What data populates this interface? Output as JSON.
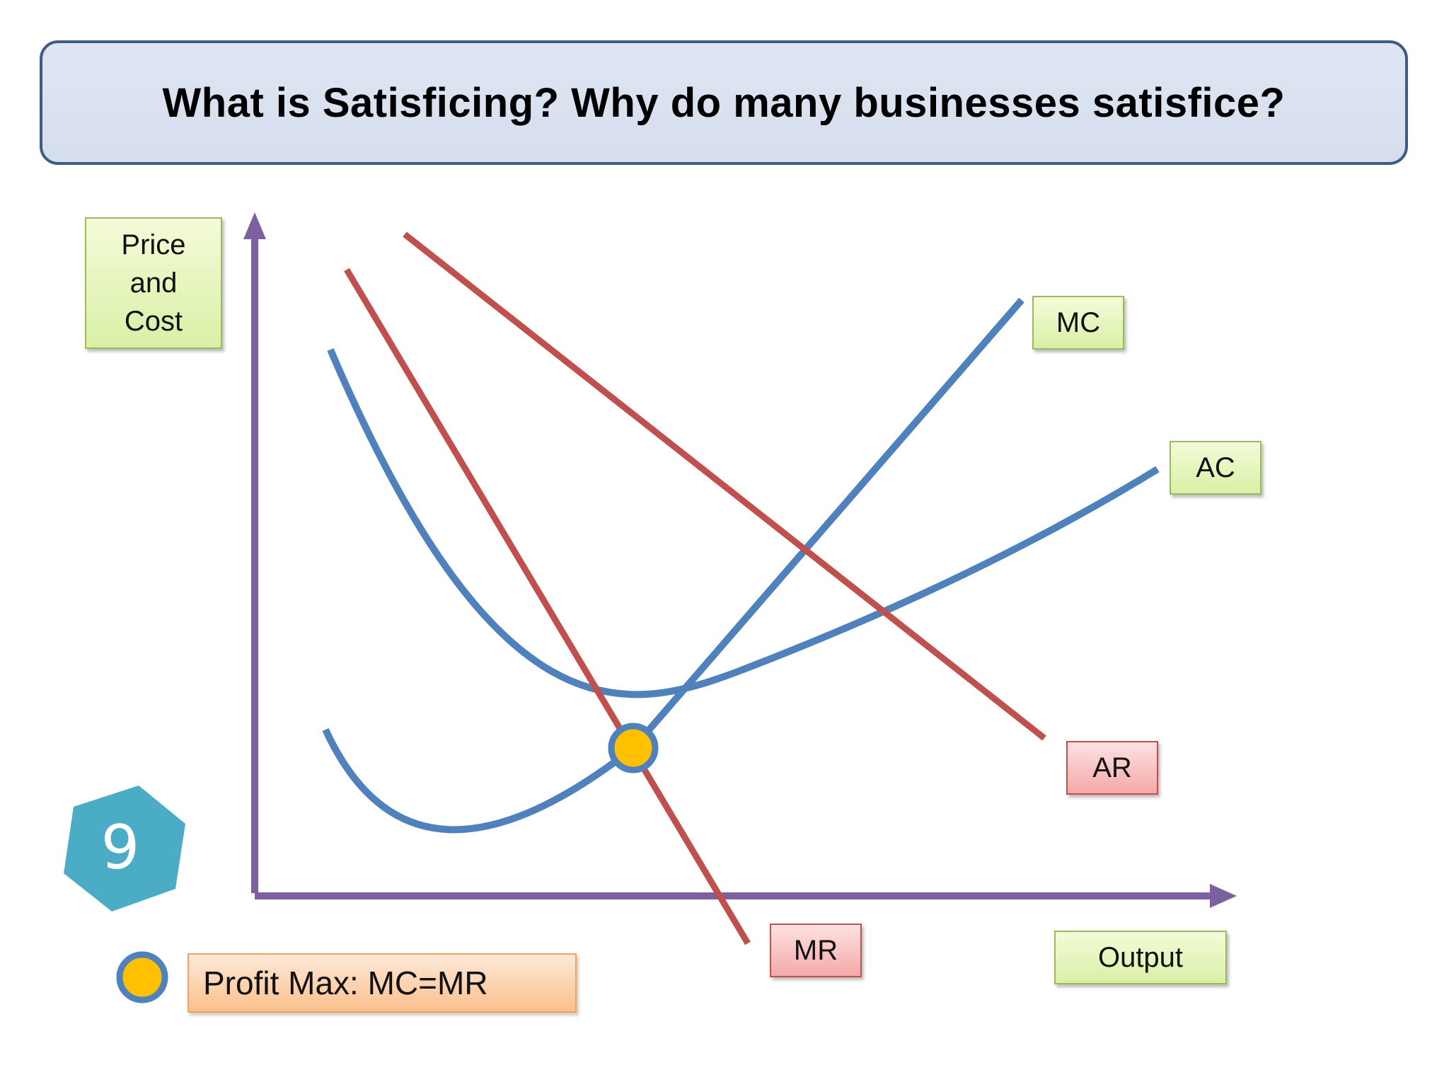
{
  "title": "What is Satisficing? Why do many businesses satisfice?",
  "labels": {
    "price_cost_line1": "Price",
    "price_cost_line2": "and",
    "price_cost_line3": "Cost",
    "mc": "MC",
    "ac": "AC",
    "ar": "AR",
    "mr": "MR",
    "output": "Output",
    "legend": "Profit Max: MC=MR",
    "slide_number": "9"
  },
  "colors": {
    "axis": "#7d60a0",
    "cost_curve": "#4f81bd",
    "revenue_curve": "#c0504d",
    "marker_fill": "#ffc000",
    "badge": "#4bacc6"
  },
  "icons": {
    "marker": "profit-max-point-icon",
    "badge": "hexagon-icon"
  }
}
